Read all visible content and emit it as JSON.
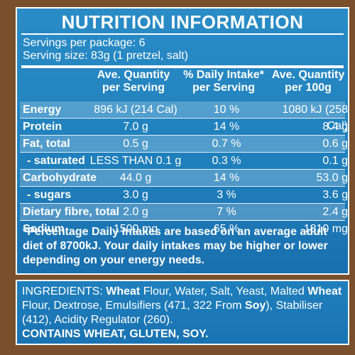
{
  "title": "NUTRITION INFORMATION",
  "servings_per_package": "Servings per package: 6",
  "serving_size": "Serving size: 83g (1 pretzel, salt)",
  "columns": {
    "per_serving": [
      "Ave. Quantity",
      "per Serving"
    ],
    "daily_intake": [
      "% Daily Intake*",
      "per Serving"
    ],
    "per_100g": [
      "Ave. Quantity",
      "per 100g"
    ]
  },
  "rows": [
    {
      "label": "Energy",
      "serving": "896 kJ (214 Cal)",
      "di": "10 %",
      "per100": "1080 kJ (258 Cal)",
      "indent": false,
      "shade": true
    },
    {
      "label": "Protein",
      "serving": "7.0 g",
      "di": "14 %",
      "per100": "8.4 g",
      "indent": false,
      "shade": false
    },
    {
      "label": "Fat, total",
      "serving": "0.5 g",
      "di": "0.7 %",
      "per100": "0.6 g",
      "indent": false,
      "shade": true
    },
    {
      "label": "- saturated",
      "serving": "LESS THAN 0.1 g",
      "di": "0.3 %",
      "per100": "0.1 g",
      "indent": true,
      "shade": false
    },
    {
      "label": "Carbohydrate",
      "serving": "44.0 g",
      "di": "14 %",
      "per100": "53.0 g",
      "indent": false,
      "shade": true
    },
    {
      "label": "- sugars",
      "serving": "3.0 g",
      "di": "3 %",
      "per100": "3.6 g",
      "indent": true,
      "shade": false
    },
    {
      "label": "Dietary fibre, total",
      "serving": "2.0 g",
      "di": "7 %",
      "per100": "2.4 g",
      "indent": false,
      "shade": true
    },
    {
      "label": "Sodium",
      "serving": "1500 mg",
      "di": "65 %",
      "per100": "1810 mg",
      "indent": false,
      "shade": false
    }
  ],
  "footnote": "*Percentage Daily Intakes are based on an average adult diet of 8700kJ. Your daily intakes may be higher or lower depending on your energy needs.",
  "ingredients": {
    "label": "INGREDIENTS:",
    "parts": [
      {
        "text": " ",
        "bold": false
      },
      {
        "text": "Wheat",
        "bold": true
      },
      {
        "text": " Flour, Water, Salt, Yeast, Malted ",
        "bold": false
      },
      {
        "text": "Wheat",
        "bold": true
      },
      {
        "text": " Flour, Dextrose, Emulsifiers (471, 322 From ",
        "bold": false
      },
      {
        "text": "Soy",
        "bold": true
      },
      {
        "text": "), Stabiliser (412), Acidity Regulator (260).",
        "bold": false
      }
    ],
    "contains": "CONTAINS WHEAT, GLUTEN, SOY."
  }
}
